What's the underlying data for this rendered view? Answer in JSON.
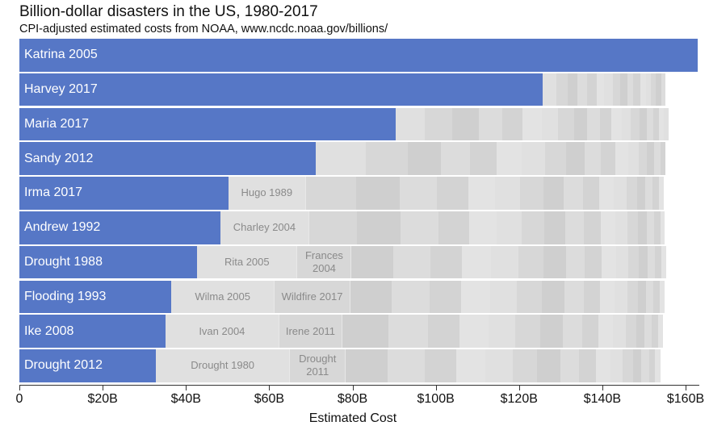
{
  "chart_data": {
    "type": "bar",
    "orientation": "horizontal-stacked",
    "title": "Billion-dollar disasters in the US, 1980-2017",
    "subtitle": "CPI-adjusted estimated costs from NOAA, www.ncdc.noaa.gov/billions/",
    "xlabel": "Estimated Cost",
    "xlim": [
      0,
      163
    ],
    "xticks": [
      0,
      20,
      40,
      60,
      80,
      100,
      120,
      140,
      160
    ],
    "xtick_labels": [
      "0",
      "$20B",
      "$40B",
      "$60B",
      "$80B",
      "$100B",
      "$120B",
      "$140B",
      "$160B"
    ],
    "colors": {
      "main": "#5677c6",
      "others": [
        "#e0e0e0",
        "#d7d7d7",
        "#cfcfcf",
        "#dcdcdc",
        "#d3d3d3",
        "#e3e3e3"
      ]
    },
    "rows": [
      {
        "name": "Katrina 2005",
        "value": 163,
        "labeled": [],
        "others": []
      },
      {
        "name": "Harvey 2017",
        "value": 125.7,
        "labeled": [],
        "others": [
          3.2,
          2.7,
          2.4,
          2.4,
          2.3,
          1.8,
          2.1,
          1.7,
          1.7,
          1.4,
          1.7,
          1.4,
          1.2,
          1.2,
          1.2,
          1.0
        ]
      },
      {
        "name": "Maria 2017",
        "value": 90.4,
        "labeled": [],
        "others": [
          7,
          6.5,
          6.5,
          5.5,
          5,
          4.5,
          4,
          3.8,
          3.2,
          3,
          2.8,
          2.5,
          2.2,
          2,
          1.8,
          1.5,
          1.4,
          1.2,
          1.2
        ]
      },
      {
        "name": "Sandy 2012",
        "value": 71.2,
        "labeled": [],
        "others": [
          12,
          10,
          8,
          7,
          6.5,
          6,
          5.5,
          5,
          4.5,
          4,
          3.5,
          3,
          2.5,
          2,
          1.8,
          1.5,
          1.2
        ]
      },
      {
        "name": "Irma 2017",
        "value": 50.2,
        "labeled": [
          {
            "name": "Hugo 1989",
            "value": 18.6
          }
        ],
        "others": [
          12,
          10.5,
          9,
          7.5,
          6.5,
          6,
          5.5,
          5,
          4.5,
          4,
          3.5,
          3,
          2.5,
          2,
          1.8,
          1.5,
          1.2
        ]
      },
      {
        "name": "Andrew 1992",
        "value": 48.3,
        "labeled": [
          {
            "name": "Charley 2004",
            "value": 21.3
          }
        ],
        "others": [
          11.5,
          10.5,
          9,
          7.5,
          6.5,
          6,
          5.5,
          5,
          4.5,
          4,
          3.5,
          3,
          2.5,
          2,
          1.8,
          1.5,
          1.1
        ]
      },
      {
        "name": "Drought 1988",
        "value": 42.7,
        "labeled": [
          {
            "name": "Rita 2005",
            "value": 24.1
          },
          {
            "name": "Frances 2004",
            "value": 13.0
          }
        ],
        "others": [
          10,
          9,
          7.5,
          7,
          6.5,
          6,
          5.5,
          4.5,
          4,
          3.5,
          3,
          2.5,
          2,
          1.8,
          1.5,
          1.2
        ]
      },
      {
        "name": "Flooding 1993",
        "value": 36.5,
        "labeled": [
          {
            "name": "Wilma 2005",
            "value": 24.8
          },
          {
            "name": "Wildfire 2017",
            "value": 18.2
          }
        ],
        "others": [
          10,
          9,
          7.5,
          7,
          6.5,
          6,
          5.5,
          4.5,
          4,
          3.5,
          3,
          2.5,
          2,
          1.8,
          1.5,
          1.2
        ]
      },
      {
        "name": "Ike 2008",
        "value": 35.1,
        "labeled": [
          {
            "name": "Ivan 2004",
            "value": 27.3
          },
          {
            "name": "Irene 2011",
            "value": 15.2
          }
        ],
        "others": [
          11,
          9.5,
          7.5,
          7,
          6.5,
          6,
          5.5,
          4.5,
          4,
          3.5,
          3,
          2.5,
          2,
          1.8,
          1.5,
          1.2
        ]
      },
      {
        "name": "Drought 2012",
        "value": 32.8,
        "labeled": [
          {
            "name": "Drought 1980",
            "value": 32.2
          },
          {
            "name": "Drought 2011",
            "value": 13.4
          }
        ],
        "others": [
          10,
          9,
          7.5,
          7,
          6.5,
          6,
          5.5,
          4.5,
          4,
          3.5,
          3,
          2.5,
          2,
          1.8,
          1.5,
          1.2
        ]
      }
    ],
    "grid": false,
    "legend": "none"
  }
}
